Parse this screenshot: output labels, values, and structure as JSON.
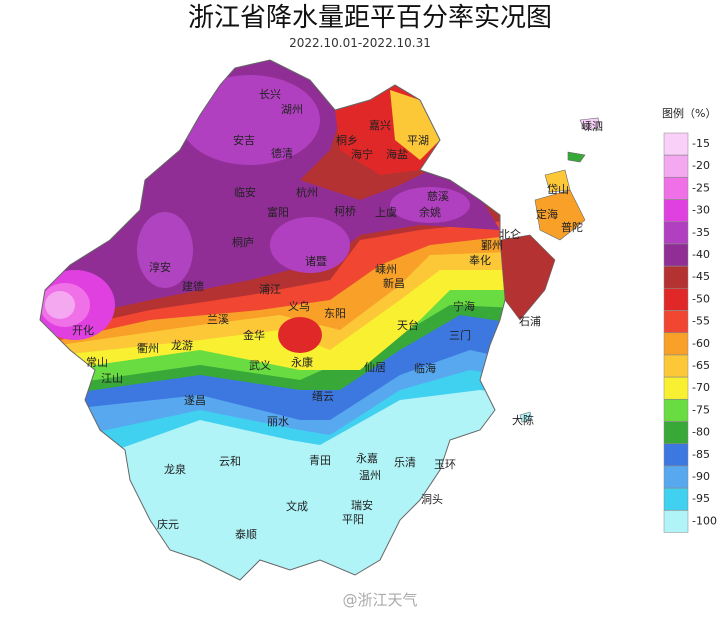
{
  "title": "浙江省降水量距平百分率实况图",
  "subtitle": "2022.10.01-2022.10.31",
  "legend": {
    "title": "图例（%）",
    "items": [
      {
        "value": -15,
        "color": "#f8d0f8"
      },
      {
        "value": -20,
        "color": "#f4a8f0"
      },
      {
        "value": -25,
        "color": "#f070e8"
      },
      {
        "value": -30,
        "color": "#e040e0"
      },
      {
        "value": -35,
        "color": "#b040c0"
      },
      {
        "value": -40,
        "color": "#902e96"
      },
      {
        "value": -45,
        "color": "#b43232"
      },
      {
        "value": -50,
        "color": "#e02828"
      },
      {
        "value": -55,
        "color": "#f04632"
      },
      {
        "value": -60,
        "color": "#f8a028"
      },
      {
        "value": -65,
        "color": "#fcc838"
      },
      {
        "value": -70,
        "color": "#f8f030"
      },
      {
        "value": -75,
        "color": "#68dc40"
      },
      {
        "value": -80,
        "color": "#38a838"
      },
      {
        "value": -85,
        "color": "#3c78e0"
      },
      {
        "value": -90,
        "color": "#58a8f0"
      },
      {
        "value": -95,
        "color": "#40d0f0"
      },
      {
        "value": -100,
        "color": "#b0f4f8"
      }
    ]
  },
  "cities": [
    "长兴",
    "湖州",
    "嘉兴",
    "嵊泗",
    "安吉",
    "德清",
    "桐乡",
    "平湖",
    "海宁",
    "海盐",
    "临安",
    "杭州",
    "慈溪",
    "岱山",
    "富阳",
    "柯桥",
    "上虞",
    "余姚",
    "定海",
    "北仑",
    "普陀",
    "鄞州",
    "桐庐",
    "诸暨",
    "奉化",
    "淳安",
    "嵊州",
    "建德",
    "浦江",
    "新昌",
    "宁海",
    "义乌",
    "东阳",
    "石浦",
    "开化",
    "兰溪",
    "金华",
    "天台",
    "三门",
    "常山",
    "衢州",
    "龙游",
    "武义",
    "永康",
    "仙居",
    "临海",
    "江山",
    "缙云",
    "遂昌",
    "丽水",
    "大陈",
    "龙泉",
    "云和",
    "青田",
    "永嘉",
    "乐清",
    "温州",
    "玉环",
    "文成",
    "瑞安",
    "洞头",
    "平阳",
    "庆元",
    "泰顺"
  ],
  "watermark": "@浙江天气"
}
